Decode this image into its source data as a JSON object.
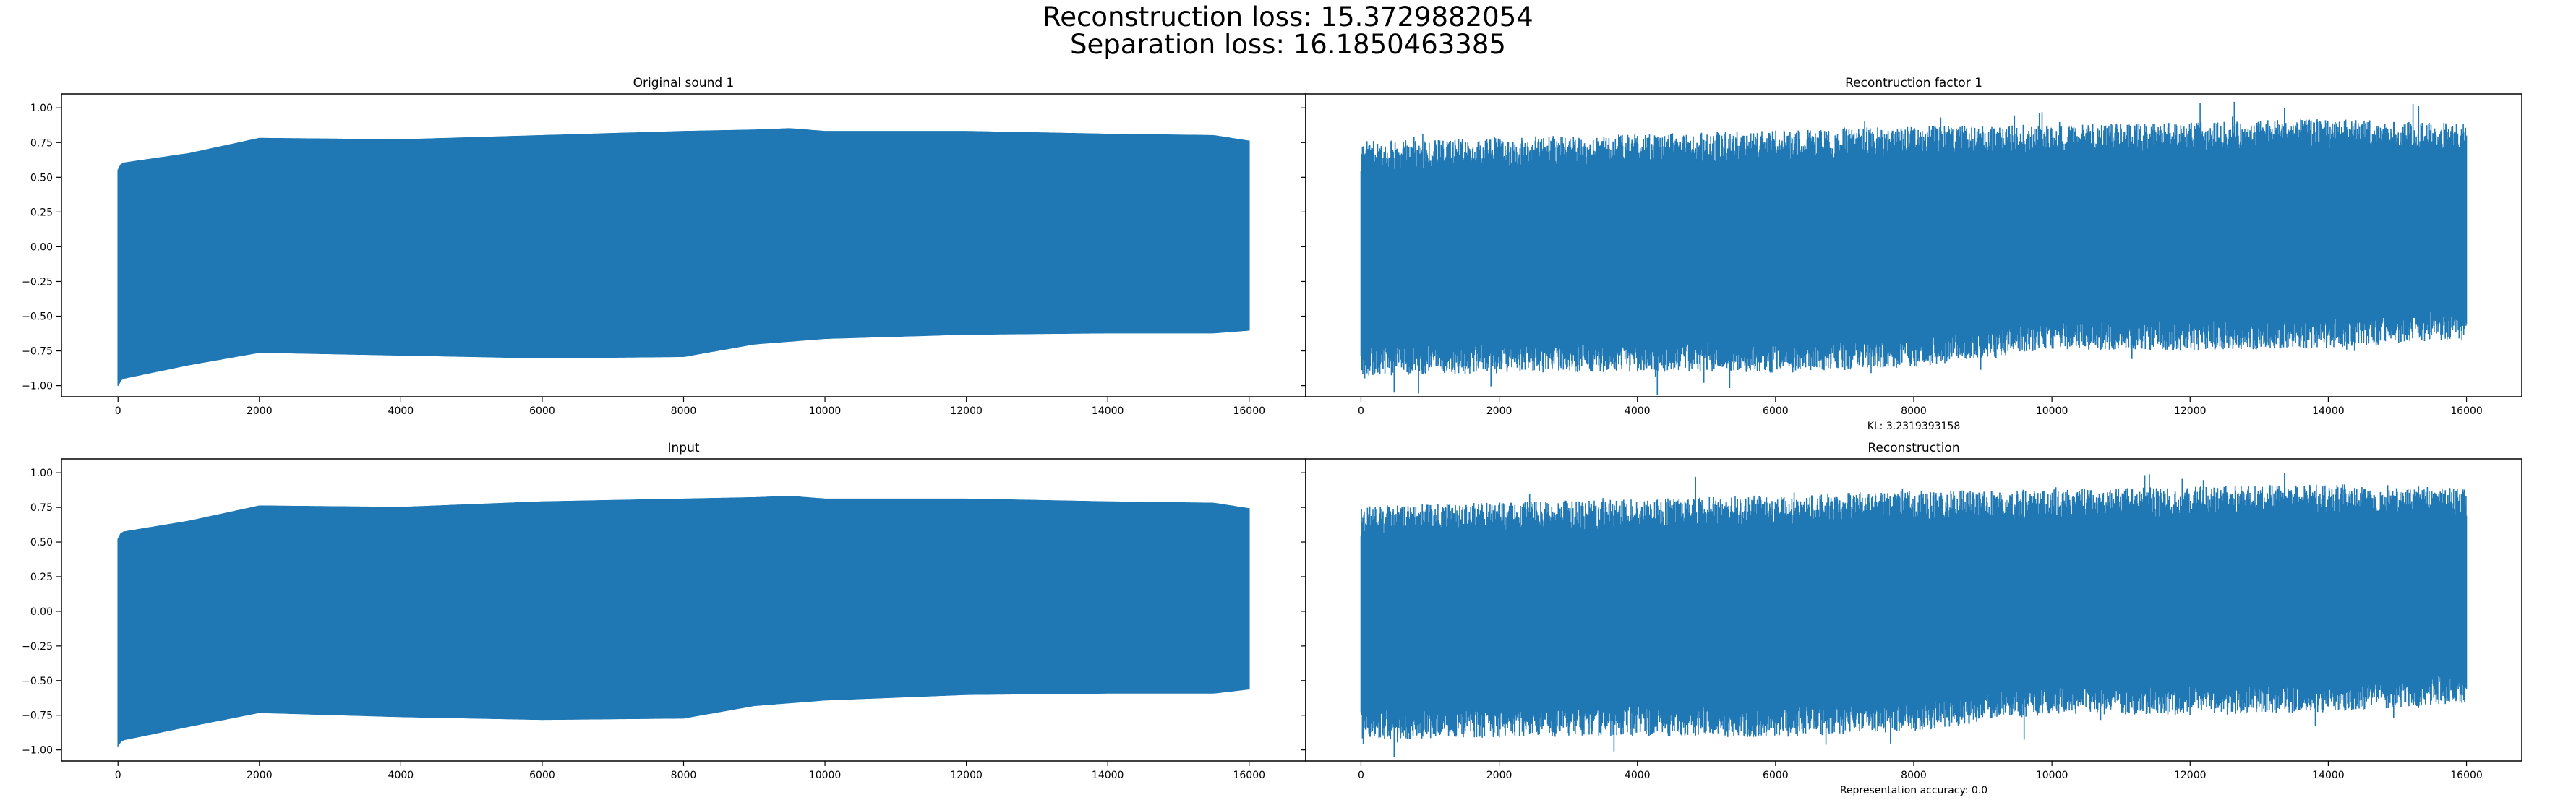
{
  "figure": {
    "title_line1": "Reconstruction loss: 15.3729882054",
    "title_line2": "Separation loss: 16.1850463385"
  },
  "style": {
    "wave_color": "#1f77b4",
    "axis_color": "#000000",
    "background": "#ffffff"
  },
  "chart_data": [
    {
      "type": "line",
      "title": "Original sound 1",
      "xlabel": "",
      "xlim": [
        -800,
        16800
      ],
      "ylim": [
        -1.08,
        1.1
      ],
      "xticks": [
        0,
        2000,
        4000,
        6000,
        8000,
        10000,
        12000,
        14000,
        16000
      ],
      "yticks": [
        -1.0,
        -0.75,
        -0.5,
        -0.25,
        0.0,
        0.25,
        0.5,
        0.75,
        1.0
      ],
      "ytick_labels": [
        "−1.00",
        "−0.75",
        "−0.50",
        "−0.25",
        "0.00",
        "0.25",
        "0.50",
        "0.75",
        "1.00"
      ],
      "series": [
        {
          "style": "dense",
          "n_samples": 16000,
          "upper_envelope": {
            "x": [
              0,
              50,
              1000,
              2000,
              4000,
              6000,
              8000,
              9000,
              9500,
              10000,
              12000,
              14000,
              15500,
              16000
            ],
            "y": [
              0.55,
              0.6,
              0.67,
              0.78,
              0.77,
              0.8,
              0.83,
              0.84,
              0.85,
              0.83,
              0.83,
              0.81,
              0.8,
              0.76
            ]
          },
          "lower_envelope": {
            "x": [
              0,
              50,
              1000,
              2000,
              4000,
              6000,
              8000,
              9000,
              10000,
              12000,
              14000,
              15500,
              16000
            ],
            "y": [
              -1.0,
              -0.95,
              -0.85,
              -0.76,
              -0.78,
              -0.8,
              -0.79,
              -0.7,
              -0.66,
              -0.63,
              -0.62,
              -0.62,
              -0.6
            ]
          }
        }
      ]
    },
    {
      "type": "line",
      "title": "Recontruction factor 1",
      "xlabel": "KL: 3.2319393158",
      "xlim": [
        -800,
        16800
      ],
      "ylim": [
        -1.08,
        1.1
      ],
      "xticks": [
        0,
        2000,
        4000,
        6000,
        8000,
        10000,
        12000,
        14000,
        16000
      ],
      "yticks": [
        -1.0,
        -0.75,
        -0.5,
        -0.25,
        0.0,
        0.25,
        0.5,
        0.75,
        1.0
      ],
      "series": [
        {
          "style": "noisy",
          "n_samples": 16000,
          "upper_envelope": {
            "x": [
              0,
              2000,
              4000,
              6000,
              8000,
              10000,
              12000,
              14000,
              16000
            ],
            "y": [
              0.65,
              0.68,
              0.7,
              0.73,
              0.76,
              0.77,
              0.79,
              0.81,
              0.78
            ]
          },
          "lower_envelope": {
            "x": [
              0,
              2000,
              4000,
              6000,
              8000,
              10000,
              12000,
              14000,
              16000
            ],
            "y": [
              -0.82,
              -0.8,
              -0.79,
              -0.8,
              -0.76,
              -0.63,
              -0.64,
              -0.62,
              -0.55
            ]
          },
          "peak": 1.0,
          "trough": -1.05
        }
      ]
    },
    {
      "type": "line",
      "title": "Input",
      "xlabel": "",
      "xlim": [
        -800,
        16800
      ],
      "ylim": [
        -1.08,
        1.1
      ],
      "xticks": [
        0,
        2000,
        4000,
        6000,
        8000,
        10000,
        12000,
        14000,
        16000
      ],
      "yticks": [
        -1.0,
        -0.75,
        -0.5,
        -0.25,
        0.0,
        0.25,
        0.5,
        0.75,
        1.0
      ],
      "ytick_labels": [
        "−1.00",
        "−0.75",
        "−0.50",
        "−0.25",
        "0.00",
        "0.25",
        "0.50",
        "0.75",
        "1.00"
      ],
      "series": [
        {
          "style": "dense",
          "n_samples": 16000,
          "upper_envelope": {
            "x": [
              0,
              50,
              1000,
              2000,
              4000,
              6000,
              8000,
              9000,
              9500,
              10000,
              12000,
              14000,
              15500,
              16000
            ],
            "y": [
              0.52,
              0.57,
              0.65,
              0.76,
              0.75,
              0.79,
              0.81,
              0.82,
              0.83,
              0.81,
              0.81,
              0.79,
              0.78,
              0.74
            ]
          },
          "lower_envelope": {
            "x": [
              0,
              50,
              1000,
              2000,
              4000,
              6000,
              8000,
              9000,
              10000,
              12000,
              14000,
              15500,
              16000
            ],
            "y": [
              -0.97,
              -0.93,
              -0.83,
              -0.73,
              -0.76,
              -0.78,
              -0.77,
              -0.68,
              -0.64,
              -0.6,
              -0.59,
              -0.59,
              -0.56
            ]
          }
        }
      ]
    },
    {
      "type": "line",
      "title": "Reconstruction",
      "xlabel": "Representation accuracy: 0.0",
      "xlim": [
        -800,
        16800
      ],
      "ylim": [
        -1.08,
        1.1
      ],
      "xticks": [
        0,
        2000,
        4000,
        6000,
        8000,
        10000,
        12000,
        14000,
        16000
      ],
      "yticks": [
        -1.0,
        -0.75,
        -0.5,
        -0.25,
        0.0,
        0.25,
        0.5,
        0.75,
        1.0
      ],
      "series": [
        {
          "style": "noisy",
          "n_samples": 16000,
          "upper_envelope": {
            "x": [
              0,
              2000,
              4000,
              6000,
              8000,
              10000,
              12000,
              14000,
              16000
            ],
            "y": [
              0.65,
              0.68,
              0.7,
              0.73,
              0.76,
              0.77,
              0.79,
              0.81,
              0.78
            ]
          },
          "lower_envelope": {
            "x": [
              0,
              2000,
              4000,
              6000,
              8000,
              10000,
              12000,
              14000,
              16000
            ],
            "y": [
              -0.82,
              -0.8,
              -0.79,
              -0.8,
              -0.76,
              -0.63,
              -0.64,
              -0.62,
              -0.55
            ]
          },
          "peak": 1.0,
          "trough": -1.05
        }
      ]
    }
  ]
}
